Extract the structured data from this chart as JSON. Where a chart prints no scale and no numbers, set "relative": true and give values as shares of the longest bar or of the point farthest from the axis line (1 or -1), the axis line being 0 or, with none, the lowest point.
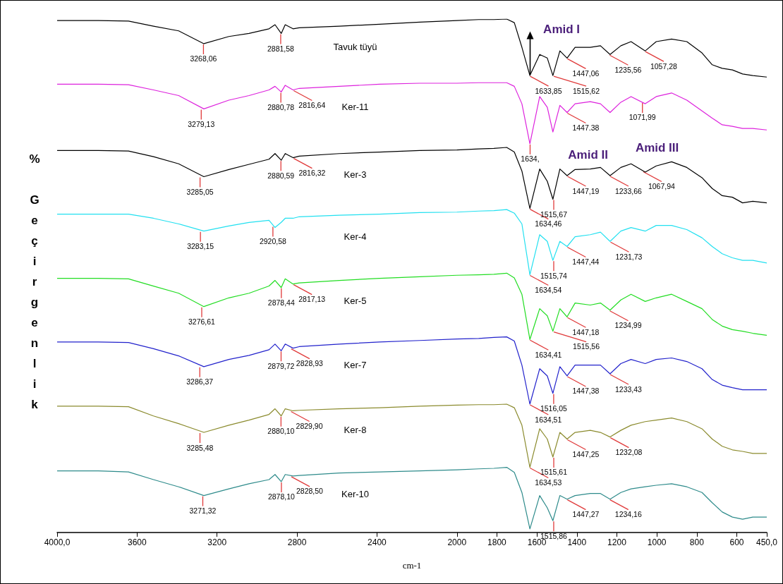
{
  "chart_data": {
    "type": "line",
    "relative": true,
    "xlabel": "cm-1",
    "ylabel": "% Geçirgenlik",
    "xlim": [
      4000,
      450
    ],
    "xticks": [
      {
        "value": 4000,
        "label": "4000,0"
      },
      3600,
      3200,
      2800,
      2400,
      2000,
      1800,
      1600,
      1400,
      1200,
      1000,
      800,
      600,
      {
        "value": 450,
        "label": "450,0"
      }
    ],
    "x": [
      4000,
      3794,
      3643,
      3518,
      3392,
      3266,
      3141,
      3040,
      2940,
      2910,
      2879,
      2859,
      2820,
      2789,
      2588,
      2387,
      2186,
      2000,
      1891,
      1815,
      1751,
      1713,
      1675,
      1635,
      1586,
      1548,
      1520,
      1485,
      1449,
      1409,
      1333,
      1282,
      1234,
      1180,
      1129,
      1058,
      1003,
      926,
      850,
      774,
      723,
      673,
      622,
      571,
      520,
      450
    ],
    "series": [
      {
        "name": "Tavuk tüyü",
        "color": "#000000",
        "values": [
          0.997,
          0.997,
          0.996,
          0.986,
          0.977,
          0.952,
          0.966,
          0.972,
          0.981,
          0.989,
          0.972,
          0.989,
          0.981,
          0.983,
          0.986,
          0.99,
          0.994,
          0.997,
          0.999,
          0.999,
          1.0,
          0.993,
          0.945,
          0.89,
          0.931,
          0.924,
          0.89,
          0.938,
          0.924,
          0.945,
          0.945,
          0.948,
          0.931,
          0.948,
          0.956,
          0.938,
          0.956,
          0.961,
          0.956,
          0.934,
          0.911,
          0.904,
          0.901,
          0.893,
          0.89,
          0.887
        ]
      },
      {
        "name": "Ker-11",
        "color": "#dd22dd",
        "values": [
          0.873,
          0.873,
          0.872,
          0.862,
          0.851,
          0.825,
          0.842,
          0.851,
          0.862,
          0.869,
          0.858,
          0.871,
          0.862,
          0.865,
          0.869,
          0.873,
          0.875,
          0.875,
          0.876,
          0.876,
          0.876,
          0.869,
          0.835,
          0.757,
          0.849,
          0.828,
          0.78,
          0.832,
          0.818,
          0.835,
          0.839,
          0.835,
          0.818,
          0.838,
          0.849,
          0.835,
          0.849,
          0.856,
          0.842,
          0.821,
          0.807,
          0.794,
          0.791,
          0.787,
          0.787,
          0.784
        ]
      },
      {
        "name": "Ker-3",
        "color": "#000000",
        "values": [
          0.744,
          0.744,
          0.743,
          0.732,
          0.718,
          0.693,
          0.707,
          0.717,
          0.727,
          0.738,
          0.725,
          0.738,
          0.73,
          0.733,
          0.738,
          0.741,
          0.744,
          0.745,
          0.747,
          0.748,
          0.75,
          0.741,
          0.704,
          0.631,
          0.708,
          0.684,
          0.649,
          0.708,
          0.695,
          0.707,
          0.708,
          0.711,
          0.695,
          0.711,
          0.718,
          0.702,
          0.714,
          0.722,
          0.711,
          0.691,
          0.67,
          0.656,
          0.653,
          0.642,
          0.645,
          0.642
        ]
      },
      {
        "name": "Ker-4",
        "color": "#22e0f0",
        "values": [
          0.62,
          0.62,
          0.62,
          0.612,
          0.601,
          0.587,
          0.597,
          0.604,
          0.608,
          0.594,
          0.604,
          0.612,
          0.612,
          0.615,
          0.618,
          0.62,
          0.623,
          0.624,
          0.626,
          0.627,
          0.629,
          0.622,
          0.601,
          0.502,
          0.58,
          0.567,
          0.53,
          0.567,
          0.557,
          0.576,
          0.58,
          0.585,
          0.567,
          0.587,
          0.594,
          0.587,
          0.598,
          0.598,
          0.59,
          0.574,
          0.557,
          0.543,
          0.535,
          0.53,
          0.53,
          0.525
        ]
      },
      {
        "name": "Ker-5",
        "color": "#22dd22",
        "values": [
          0.495,
          0.495,
          0.494,
          0.48,
          0.466,
          0.44,
          0.457,
          0.466,
          0.48,
          0.491,
          0.477,
          0.494,
          0.484,
          0.486,
          0.491,
          0.495,
          0.498,
          0.501,
          0.502,
          0.503,
          0.505,
          0.496,
          0.464,
          0.376,
          0.436,
          0.422,
          0.392,
          0.436,
          0.42,
          0.447,
          0.443,
          0.447,
          0.433,
          0.453,
          0.464,
          0.45,
          0.457,
          0.464,
          0.45,
          0.436,
          0.415,
          0.402,
          0.395,
          0.392,
          0.388,
          0.384
        ]
      },
      {
        "name": "Ker-7",
        "color": "#2222cc",
        "values": [
          0.371,
          0.371,
          0.37,
          0.358,
          0.344,
          0.323,
          0.337,
          0.345,
          0.356,
          0.367,
          0.354,
          0.367,
          0.359,
          0.362,
          0.367,
          0.371,
          0.374,
          0.377,
          0.378,
          0.38,
          0.381,
          0.373,
          0.326,
          0.25,
          0.319,
          0.305,
          0.271,
          0.323,
          0.305,
          0.326,
          0.326,
          0.326,
          0.309,
          0.329,
          0.337,
          0.329,
          0.337,
          0.34,
          0.333,
          0.319,
          0.298,
          0.287,
          0.282,
          0.278,
          0.278,
          0.278
        ]
      },
      {
        "name": "Ker-8",
        "color": "#8b8b2e",
        "values": [
          0.246,
          0.246,
          0.245,
          0.227,
          0.212,
          0.195,
          0.209,
          0.219,
          0.23,
          0.241,
          0.227,
          0.241,
          0.237,
          0.238,
          0.241,
          0.243,
          0.246,
          0.248,
          0.249,
          0.249,
          0.25,
          0.243,
          0.209,
          0.127,
          0.202,
          0.182,
          0.147,
          0.195,
          0.182,
          0.195,
          0.199,
          0.195,
          0.186,
          0.199,
          0.209,
          0.216,
          0.219,
          0.223,
          0.216,
          0.202,
          0.182,
          0.168,
          0.161,
          0.158,
          0.154,
          0.154
        ]
      },
      {
        "name": "Ker-10",
        "color": "#2e8b8b",
        "values": [
          0.12,
          0.12,
          0.118,
          0.103,
          0.089,
          0.072,
          0.085,
          0.095,
          0.103,
          0.113,
          0.099,
          0.113,
          0.11,
          0.111,
          0.116,
          0.118,
          0.12,
          0.122,
          0.124,
          0.125,
          0.127,
          0.117,
          0.078,
          0.007,
          0.072,
          0.048,
          0.023,
          0.072,
          0.065,
          0.072,
          0.076,
          0.076,
          0.065,
          0.078,
          0.085,
          0.089,
          0.092,
          0.095,
          0.089,
          0.078,
          0.058,
          0.04,
          0.03,
          0.026,
          0.03,
          0.03
        ]
      }
    ],
    "annotations": [
      "Amid I",
      "Amid II",
      "Amid III",
      {
        "text": "3268,06",
        "x": 3268.06,
        "y": 0.952
      },
      {
        "text": "2881,58",
        "x": 2881.58,
        "y": 0.972
      },
      {
        "text": "1633,85",
        "x": 1633.85,
        "y": 0.89
      },
      {
        "text": "1515,62",
        "x": 1515.62,
        "y": 0.89
      },
      {
        "text": "1447,06",
        "x": 1447.06,
        "y": 0.924
      },
      {
        "text": "1235,56",
        "x": 1235.56,
        "y": 0.931
      },
      {
        "text": "1057,28",
        "x": 1057.28,
        "y": 0.938
      },
      {
        "text": "3279,13",
        "x": 3279.13,
        "y": 0.825
      },
      {
        "text": "2880,78",
        "x": 2880.78,
        "y": 0.858
      },
      {
        "text": "2816,64",
        "x": 2816.64,
        "y": 0.862
      },
      {
        "text": "1634,",
        "x": 1634,
        "y": 0.757
      },
      {
        "text": "1447.38",
        "x": 1447.38,
        "y": 0.818
      },
      {
        "text": "1071,99",
        "x": 1071.99,
        "y": 0.838
      },
      {
        "text": "3285,05",
        "x": 3285.05,
        "y": 0.693
      },
      {
        "text": "2880,59",
        "x": 2880.59,
        "y": 0.725
      },
      {
        "text": "2816,32",
        "x": 2816.32,
        "y": 0.73
      },
      {
        "text": "1634,46",
        "x": 1634.46,
        "y": 0.631
      },
      {
        "text": "1515,67",
        "x": 1515.67,
        "y": 0.649
      },
      {
        "text": "1447,19",
        "x": 1447.19,
        "y": 0.695
      },
      {
        "text": "1233,66",
        "x": 1233.66,
        "y": 0.695
      },
      {
        "text": "1067,94",
        "x": 1067.94,
        "y": 0.704
      },
      {
        "text": "3283,15",
        "x": 3283.15,
        "y": 0.587
      },
      {
        "text": "2920,58",
        "x": 2920.58,
        "y": 0.597
      },
      {
        "text": "1634,54",
        "x": 1634.54,
        "y": 0.502
      },
      {
        "text": "1515,74",
        "x": 1515.74,
        "y": 0.53
      },
      {
        "text": "1447,44",
        "x": 1447.44,
        "y": 0.557
      },
      {
        "text": "1231,73",
        "x": 1231.73,
        "y": 0.567
      },
      {
        "text": "3276,61",
        "x": 3276.61,
        "y": 0.44
      },
      {
        "text": "2878,44",
        "x": 2878.44,
        "y": 0.477
      },
      {
        "text": "2817,13",
        "x": 2817.13,
        "y": 0.484
      },
      {
        "text": "1634,41",
        "x": 1634.41,
        "y": 0.376
      },
      {
        "text": "1515,56",
        "x": 1515.56,
        "y": 0.392
      },
      {
        "text": "1447,18",
        "x": 1447.18,
        "y": 0.42
      },
      {
        "text": "1234,99",
        "x": 1234.99,
        "y": 0.433
      },
      {
        "text": "3286,37",
        "x": 3286.37,
        "y": 0.323
      },
      {
        "text": "2879,72",
        "x": 2879.72,
        "y": 0.354
      },
      {
        "text": "2828,93",
        "x": 2828.93,
        "y": 0.359
      },
      {
        "text": "1634,51",
        "x": 1634.51,
        "y": 0.25
      },
      {
        "text": "1516,05",
        "x": 1516.05,
        "y": 0.271
      },
      {
        "text": "1447,38",
        "x": 1447.38,
        "y": 0.305
      },
      {
        "text": "1233,43",
        "x": 1233.43,
        "y": 0.309
      },
      {
        "text": "3285,48",
        "x": 3285.48,
        "y": 0.195
      },
      {
        "text": "2880,10",
        "x": 2880.1,
        "y": 0.227
      },
      {
        "text": "2829,90",
        "x": 2829.9,
        "y": 0.237
      },
      {
        "text": "1634,53",
        "x": 1634.53,
        "y": 0.127
      },
      {
        "text": "1515,61",
        "x": 1515.61,
        "y": 0.147
      },
      {
        "text": "1447,25",
        "x": 1447.25,
        "y": 0.182
      },
      {
        "text": "1232,08",
        "x": 1232.08,
        "y": 0.186
      },
      {
        "text": "3271,32",
        "x": 3271.32,
        "y": 0.072
      },
      {
        "text": "2878,10",
        "x": 2878.1,
        "y": 0.099
      },
      {
        "text": "2828,50",
        "x": 2828.5,
        "y": 0.11
      },
      {
        "text": "1515,86",
        "x": 1515.86,
        "y": 0.023
      },
      {
        "text": "1447,27",
        "x": 1447.27,
        "y": 0.065
      },
      {
        "text": "1234,16",
        "x": 1234.16,
        "y": 0.065
      }
    ]
  }
}
